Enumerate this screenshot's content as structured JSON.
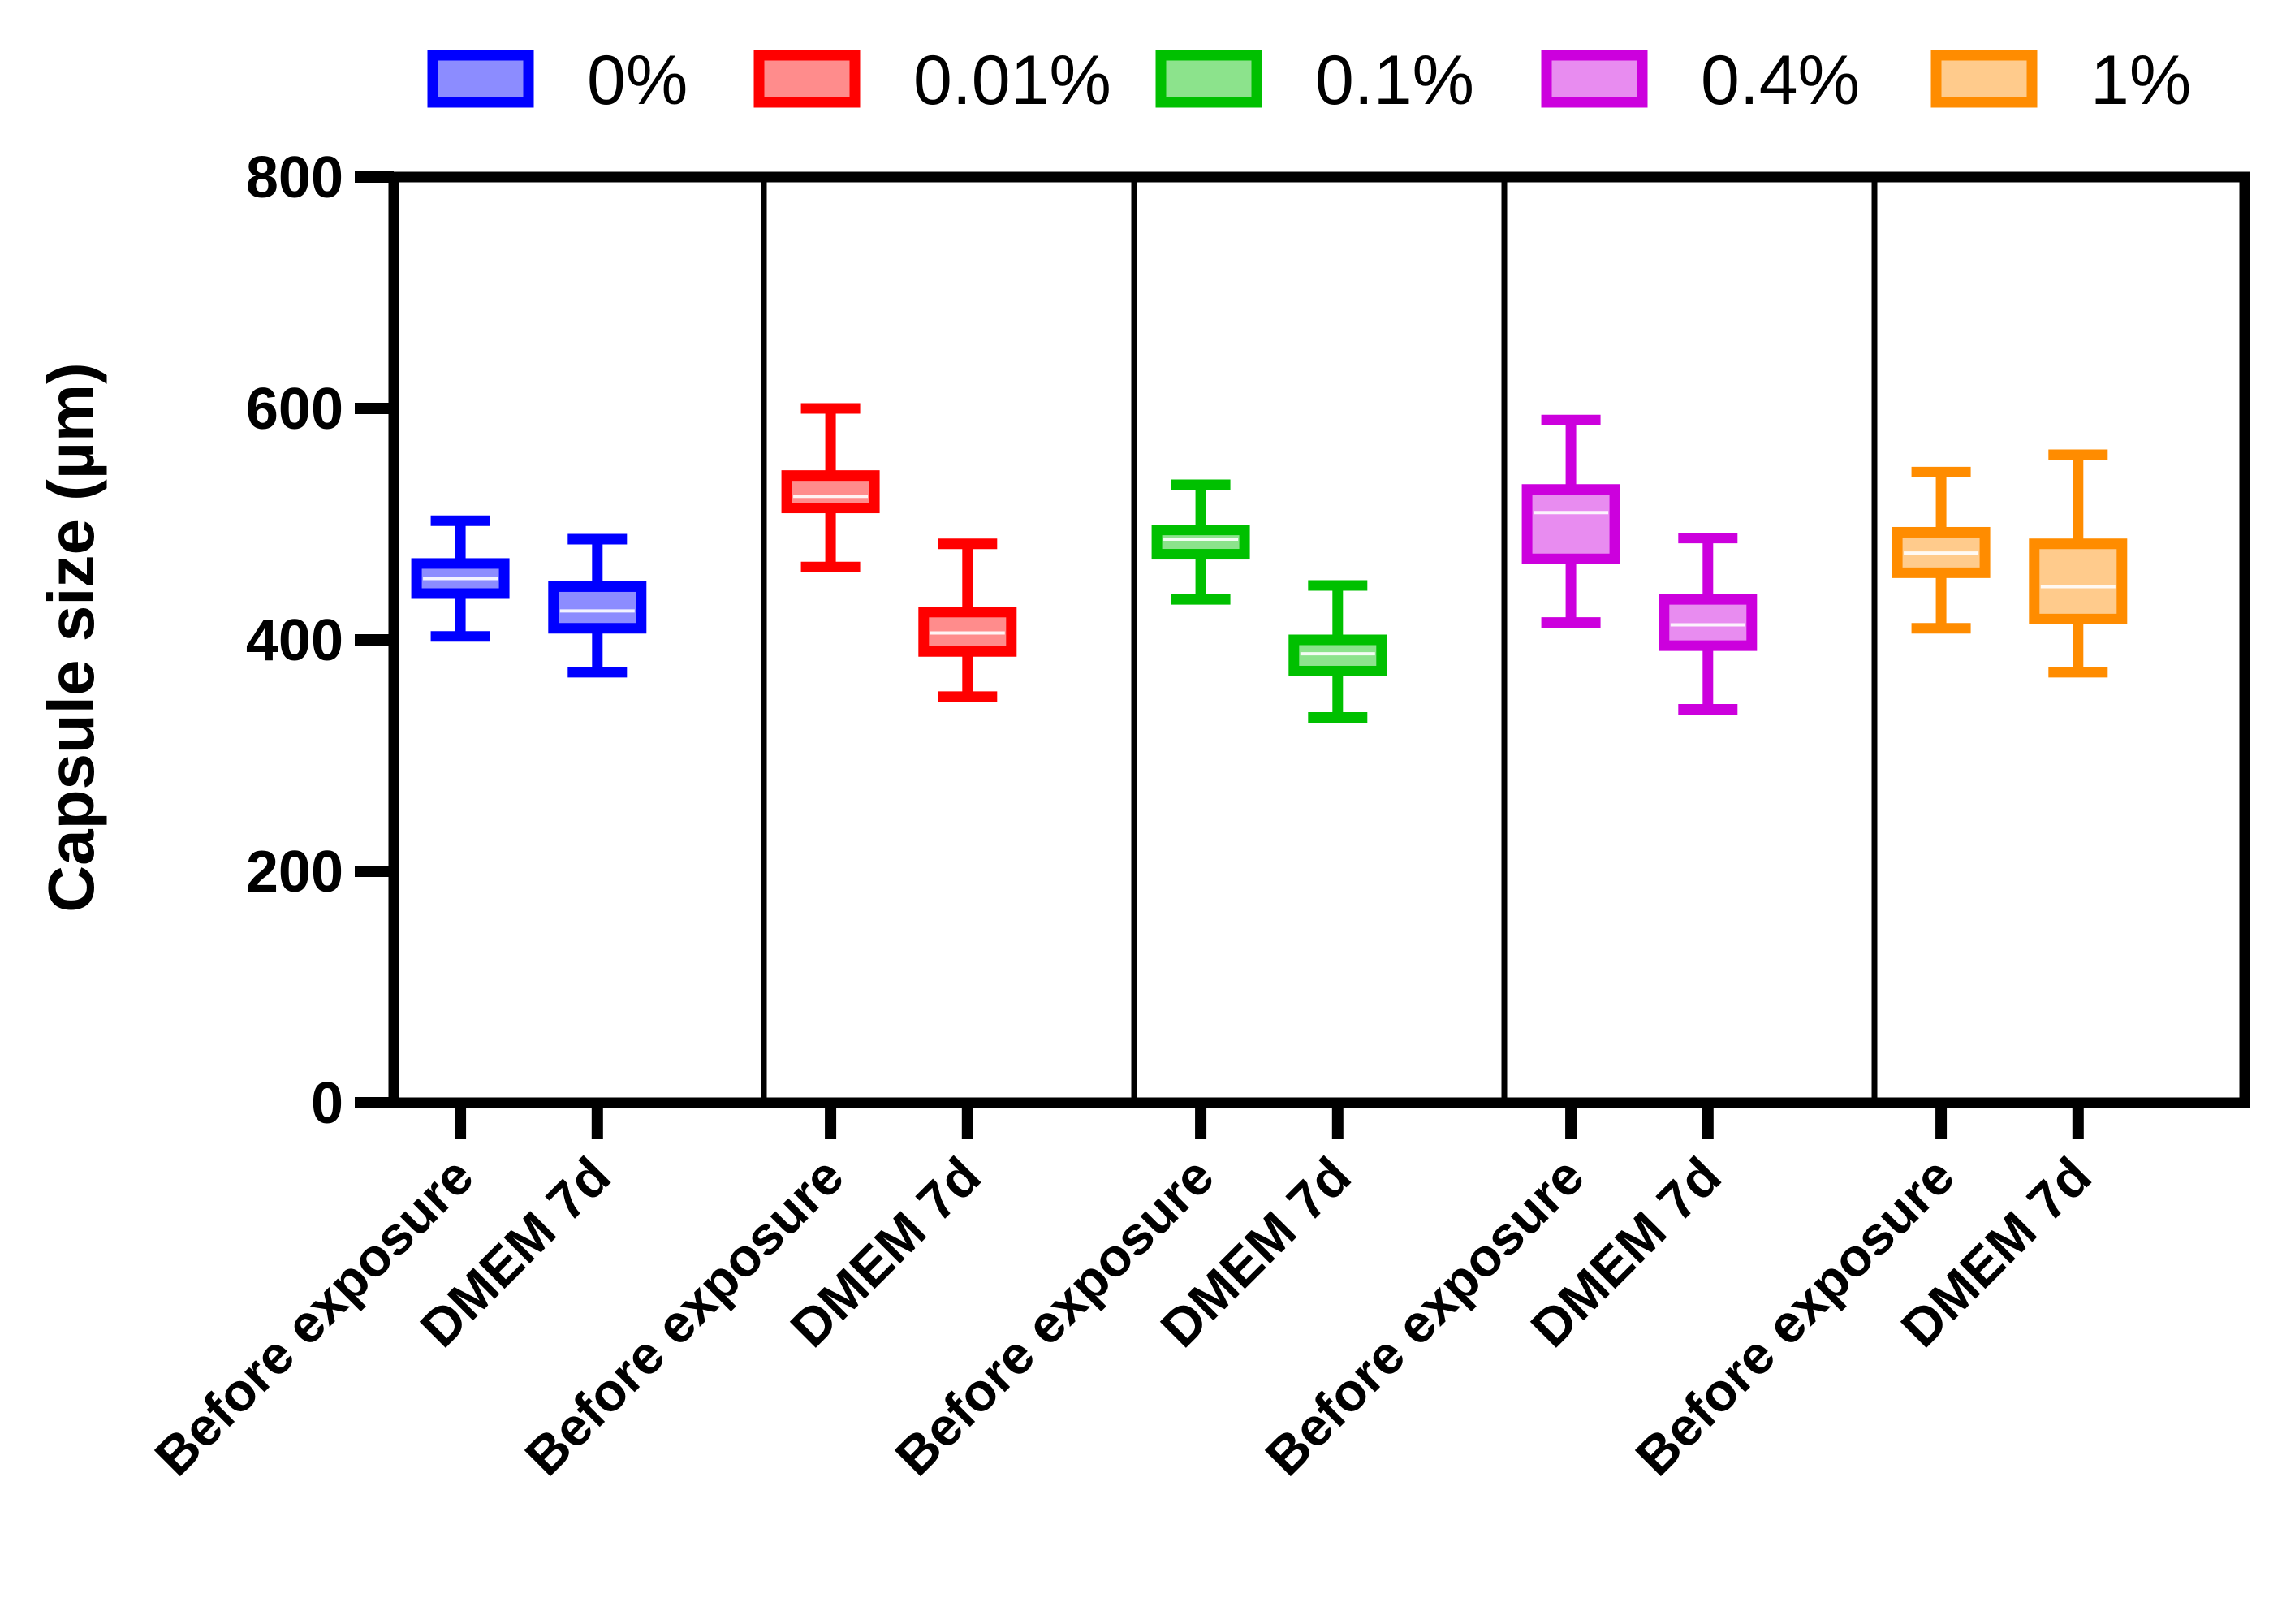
{
  "chart_data": {
    "type": "box",
    "title": "",
    "xlabel": "",
    "ylabel": "Capsule size (µm)",
    "ylim": [
      0,
      800
    ],
    "yticks": [
      0,
      200,
      400,
      600,
      800
    ],
    "grid": false,
    "legend_position": "top",
    "categories": [
      "Before exposure",
      "DMEM 7d"
    ],
    "series": [
      {
        "name": "0%",
        "color": "#0000ff",
        "boxes": [
          {
            "category": "Before exposure",
            "min": 403,
            "q1": 440,
            "median": 453,
            "q3": 466,
            "max": 503
          },
          {
            "category": "DMEM 7d",
            "min": 372,
            "q1": 410,
            "median": 425,
            "q3": 446,
            "max": 487
          }
        ]
      },
      {
        "name": "0.01%",
        "color": "#ff0000",
        "boxes": [
          {
            "category": "Before exposure",
            "min": 463,
            "q1": 514,
            "median": 524,
            "q3": 542,
            "max": 600
          },
          {
            "category": "DMEM 7d",
            "min": 351,
            "q1": 390,
            "median": 406,
            "q3": 424,
            "max": 483
          }
        ]
      },
      {
        "name": "0.1%",
        "color": "#00c000",
        "boxes": [
          {
            "category": "Before exposure",
            "min": 435,
            "q1": 474,
            "median": 487,
            "q3": 495,
            "max": 534
          },
          {
            "category": "DMEM 7d",
            "min": 333,
            "q1": 373,
            "median": 388,
            "q3": 400,
            "max": 447
          }
        ]
      },
      {
        "name": "0.4%",
        "color": "#cc00dd",
        "boxes": [
          {
            "category": "Before exposure",
            "min": 415,
            "q1": 470,
            "median": 510,
            "q3": 530,
            "max": 590
          },
          {
            "category": "DMEM 7d",
            "min": 340,
            "q1": 395,
            "median": 413,
            "q3": 435,
            "max": 488
          }
        ]
      },
      {
        "name": "1%",
        "color": "#ff8c00",
        "boxes": [
          {
            "category": "Before exposure",
            "min": 410,
            "q1": 458,
            "median": 475,
            "q3": 493,
            "max": 545
          },
          {
            "category": "DMEM 7d",
            "min": 372,
            "q1": 418,
            "median": 446,
            "q3": 483,
            "max": 560
          }
        ]
      }
    ]
  }
}
